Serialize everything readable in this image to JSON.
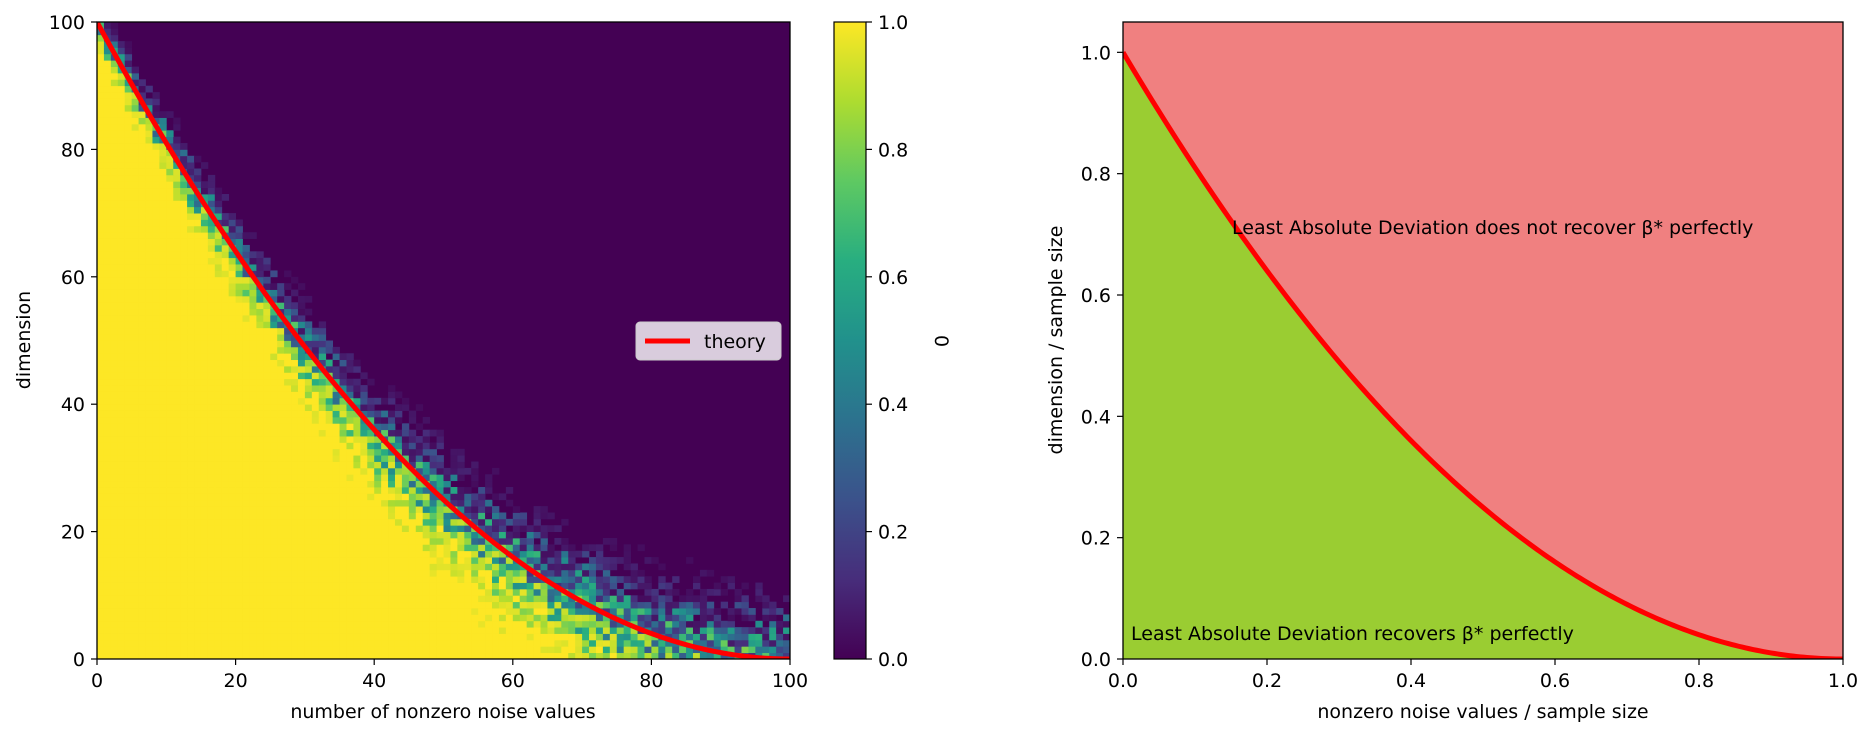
{
  "chart_data": [
    {
      "type": "heatmap",
      "xlabel": "number of nonzero noise values",
      "ylabel": "dimension",
      "xlim": [
        0,
        100
      ],
      "ylim": [
        0,
        100
      ],
      "xticks": [
        "0",
        "20",
        "40",
        "60",
        "80",
        "100"
      ],
      "yticks": [
        "0",
        "20",
        "40",
        "60",
        "80",
        "100"
      ],
      "colorscale": "viridis",
      "value_range": [
        0,
        1
      ],
      "colorbar": {
        "label": "0",
        "ticks": [
          "0.0",
          "0.2",
          "0.4",
          "0.6",
          "0.8",
          "1.0"
        ]
      },
      "legend": {
        "position": "center-right",
        "entries": [
          "theory"
        ]
      },
      "series": [
        {
          "name": "theory",
          "color": "#ff0000",
          "curve": "d/n = (1 - k/n)^2",
          "x": [
            0,
            10,
            20,
            30,
            40,
            50,
            60,
            70,
            80,
            90,
            100
          ],
          "y": [
            100,
            81,
            64,
            49,
            36,
            25,
            16,
            9,
            4,
            1,
            0
          ]
        }
      ],
      "heatmap_note": "value ~1 (yellow) below the theory curve, ~0 (purple) above it, with a noisy transition band"
    },
    {
      "type": "area",
      "xlabel": "nonzero noise values / sample size",
      "ylabel": "dimension / sample size",
      "xlim": [
        0,
        1
      ],
      "ylim": [
        0,
        1.05
      ],
      "xticks": [
        "0.0",
        "0.2",
        "0.4",
        "0.6",
        "0.8",
        "1.0"
      ],
      "yticks": [
        "0.0",
        "0.2",
        "0.4",
        "0.6",
        "0.8",
        "1.0"
      ],
      "boundary": {
        "color": "#ff0000",
        "x": [
          0,
          0.1,
          0.2,
          0.3,
          0.4,
          0.5,
          0.6,
          0.7,
          0.8,
          0.9,
          1.0
        ],
        "y": [
          1.0,
          0.81,
          0.64,
          0.49,
          0.36,
          0.25,
          0.16,
          0.09,
          0.04,
          0.01,
          0.0
        ]
      },
      "regions": [
        {
          "color": "#9acd32",
          "annotation": "Least Absolute Deviation recovers β* perfectly"
        },
        {
          "color": "#f08080",
          "annotation": "Least Absolute Deviation does not recover β* perfectly"
        }
      ]
    }
  ]
}
